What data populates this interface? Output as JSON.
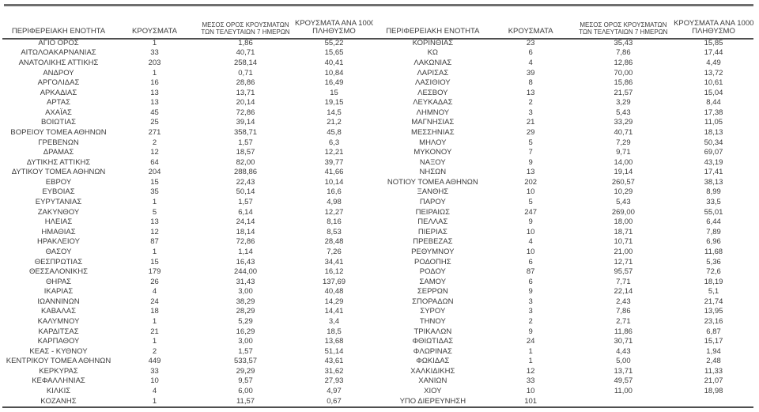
{
  "colors": {
    "background": "#ffffff",
    "text": "#3b3b3b",
    "top_divider": "#6e6e6e",
    "table_rule": "#4f4f4f"
  },
  "headers": {
    "region": "ΠΕΡΙΦΕΡΕΙΑΚΗ ΕΝΟΤΗΤΑ",
    "cases": "ΚΡΟΥΣΜΑΤΑ",
    "avg7_line1": "ΜΕΣΟΣ ΟΡΟΣ ΚΡΟΥΣΜΑΤΩΝ",
    "avg7_line2": "ΤΩΝ ΤΕΛΕΥΤΑΙΩΝ 7 ΗΜΕΡΩΝ",
    "per100k_line1": "ΚΡΟΥΣΜΑΤΑ ΑΝΑ 100000",
    "per100k_line2": "ΠΛΗΘΥΣΜΟ"
  },
  "left_table": {
    "rows": [
      [
        "ΑΓΙΟ ΟΡΟΣ",
        "1",
        "1,86",
        "55,22"
      ],
      [
        "ΑΙΤΩΛΟΑΚΑΡΝΑΝΙΑΣ",
        "33",
        "40,71",
        "15,65"
      ],
      [
        "ΑΝΑΤΟΛΙΚΗΣ ΑΤΤΙΚΗΣ",
        "203",
        "258,14",
        "40,41"
      ],
      [
        "ΑΝΔΡΟΥ",
        "1",
        "0,71",
        "10,84"
      ],
      [
        "ΑΡΓΟΛΙΔΑΣ",
        "16",
        "28,86",
        "16,49"
      ],
      [
        "ΑΡΚΑΔΙΑΣ",
        "13",
        "13,71",
        "15"
      ],
      [
        "ΑΡΤΑΣ",
        "13",
        "20,14",
        "19,15"
      ],
      [
        "ΑΧΑΪΑΣ",
        "45",
        "72,86",
        "14,5"
      ],
      [
        "ΒΟΙΩΤΙΑΣ",
        "25",
        "39,14",
        "21,2"
      ],
      [
        "ΒΟΡΕΙΟΥ ΤΟΜΕΑ ΑΘΗΝΩΝ",
        "271",
        "358,71",
        "45,8"
      ],
      [
        "ΓΡΕΒΕΝΩΝ",
        "2",
        "1,57",
        "6,3"
      ],
      [
        "ΔΡΑΜΑΣ",
        "12",
        "18,57",
        "12,21"
      ],
      [
        "ΔΥΤΙΚΗΣ ΑΤΤΙΚΗΣ",
        "64",
        "82,00",
        "39,77"
      ],
      [
        "ΔΥΤΙΚΟΥ ΤΟΜΕΑ ΑΘΗΝΩΝ",
        "204",
        "288,86",
        "41,66"
      ],
      [
        "ΕΒΡΟΥ",
        "15",
        "22,43",
        "10,14"
      ],
      [
        "ΕΥΒΟΙΑΣ",
        "35",
        "50,14",
        "16,6"
      ],
      [
        "ΕΥΡΥΤΑΝΙΑΣ",
        "1",
        "1,57",
        "4,98"
      ],
      [
        "ΖΑΚΥΝΘΟΥ",
        "5",
        "6,14",
        "12,27"
      ],
      [
        "ΗΛΕΙΑΣ",
        "13",
        "24,14",
        "8,16"
      ],
      [
        "ΗΜΑΘΙΑΣ",
        "12",
        "18,14",
        "8,53"
      ],
      [
        "ΗΡΑΚΛΕΙΟΥ",
        "87",
        "72,86",
        "28,48"
      ],
      [
        "ΘΑΣΟΥ",
        "1",
        "1,14",
        "7,26"
      ],
      [
        "ΘΕΣΠΡΩΤΙΑΣ",
        "15",
        "16,43",
        "34,41"
      ],
      [
        "ΘΕΣΣΑΛΟΝΙΚΗΣ",
        "179",
        "244,00",
        "16,12"
      ],
      [
        "ΘΗΡΑΣ",
        "26",
        "31,43",
        "137,69"
      ],
      [
        "ΙΚΑΡΙΑΣ",
        "4",
        "3,00",
        "40,48"
      ],
      [
        "ΙΩΑΝΝΙΝΩΝ",
        "24",
        "38,29",
        "14,29"
      ],
      [
        "ΚΑΒΑΛΑΣ",
        "18",
        "28,29",
        "14,41"
      ],
      [
        "ΚΑΛΥΜΝΟΥ",
        "1",
        "5,29",
        "3,4"
      ],
      [
        "ΚΑΡΔΙΤΣΑΣ",
        "21",
        "16,29",
        "18,5"
      ],
      [
        "ΚΑΡΠΑΘΟΥ",
        "1",
        "3,00",
        "13,68"
      ],
      [
        "ΚΕΑΣ - ΚΥΘΝΟΥ",
        "2",
        "1,57",
        "51,14"
      ],
      [
        "ΚΕΝΤΡΙΚΟΥ ΤΟΜΕΑ ΑΘΗΝΩΝ",
        "449",
        "533,57",
        "43,61"
      ],
      [
        "ΚΕΡΚΥΡΑΣ",
        "33",
        "29,29",
        "31,62"
      ],
      [
        "ΚΕΦΑΛΛΗΝΙΑΣ",
        "10",
        "9,57",
        "27,93"
      ],
      [
        "ΚΙΛΚΙΣ",
        "4",
        "6,00",
        "4,97"
      ],
      [
        "ΚΟΖΑΝΗΣ",
        "1",
        "11,57",
        "0,67"
      ]
    ]
  },
  "right_table": {
    "rows": [
      [
        "ΚΟΡΙΝΘΙΑΣ",
        "23",
        "35,43",
        "15,85"
      ],
      [
        "ΚΩ",
        "6",
        "7,86",
        "17,44"
      ],
      [
        "ΛΑΚΩΝΙΑΣ",
        "4",
        "12,86",
        "4,49"
      ],
      [
        "ΛΑΡΙΣΑΣ",
        "39",
        "70,00",
        "13,72"
      ],
      [
        "ΛΑΣΙΘΙΟΥ",
        "8",
        "15,86",
        "10,61"
      ],
      [
        "ΛΕΣΒΟΥ",
        "13",
        "21,57",
        "15,04"
      ],
      [
        "ΛΕΥΚΑΔΑΣ",
        "2",
        "3,29",
        "8,44"
      ],
      [
        "ΛΗΜΝΟΥ",
        "3",
        "5,43",
        "17,38"
      ],
      [
        "ΜΑΓΝΗΣΙΑΣ",
        "21",
        "33,29",
        "11,05"
      ],
      [
        "ΜΕΣΣΗΝΙΑΣ",
        "29",
        "40,71",
        "18,13"
      ],
      [
        "ΜΗΛΟΥ",
        "5",
        "7,29",
        "50,34"
      ],
      [
        "ΜΥΚΟΝΟΥ",
        "7",
        "9,71",
        "69,07"
      ],
      [
        "ΝΑΞΟΥ",
        "9",
        "14,00",
        "43,19"
      ],
      [
        "ΝΗΣΩΝ",
        "13",
        "19,14",
        "17,41"
      ],
      [
        "ΝΟΤΙΟΥ ΤΟΜΕΑ ΑΘΗΝΩΝ",
        "202",
        "260,57",
        "38,13"
      ],
      [
        "ΞΑΝΘΗΣ",
        "10",
        "10,29",
        "8,99"
      ],
      [
        "ΠΑΡΟΥ",
        "5",
        "5,43",
        "33,5"
      ],
      [
        "ΠΕΙΡΑΙΩΣ",
        "247",
        "269,00",
        "55,01"
      ],
      [
        "ΠΕΛΛΑΣ",
        "9",
        "18,00",
        "6,44"
      ],
      [
        "ΠΙΕΡΙΑΣ",
        "10",
        "18,71",
        "7,89"
      ],
      [
        "ΠΡΕΒΕΖΑΣ",
        "4",
        "10,71",
        "6,96"
      ],
      [
        "ΡΕΘΥΜΝΟΥ",
        "10",
        "21,00",
        "11,68"
      ],
      [
        "ΡΟΔΟΠΗΣ",
        "6",
        "12,71",
        "5,36"
      ],
      [
        "ΡΟΔΟΥ",
        "87",
        "95,57",
        "72,6"
      ],
      [
        "ΣΑΜΟΥ",
        "6",
        "7,71",
        "18,19"
      ],
      [
        "ΣΕΡΡΩΝ",
        "9",
        "22,14",
        "5,1"
      ],
      [
        "ΣΠΟΡΑΔΩΝ",
        "3",
        "2,43",
        "21,74"
      ],
      [
        "ΣΥΡΟΥ",
        "3",
        "7,86",
        "13,95"
      ],
      [
        "ΤΗΝΟΥ",
        "2",
        "2,71",
        "23,16"
      ],
      [
        "ΤΡΙΚΑΛΩΝ",
        "9",
        "11,86",
        "6,87"
      ],
      [
        "ΦΘΙΩΤΙΔΑΣ",
        "24",
        "30,71",
        "15,17"
      ],
      [
        "ΦΛΩΡΙΝΑΣ",
        "1",
        "4,43",
        "1,94"
      ],
      [
        "ΦΩΚΙΔΑΣ",
        "1",
        "5,00",
        "2,48"
      ],
      [
        "ΧΑΛΚΙΔΙΚΗΣ",
        "12",
        "13,71",
        "11,33"
      ],
      [
        "ΧΑΝΙΩΝ",
        "33",
        "49,57",
        "21,07"
      ],
      [
        "ΧΙΟΥ",
        "10",
        "11,00",
        "18,98"
      ],
      [
        "ΥΠΟ ΔΙΕΡΕΥΝΗΣΗ",
        "101",
        "",
        ""
      ]
    ]
  }
}
